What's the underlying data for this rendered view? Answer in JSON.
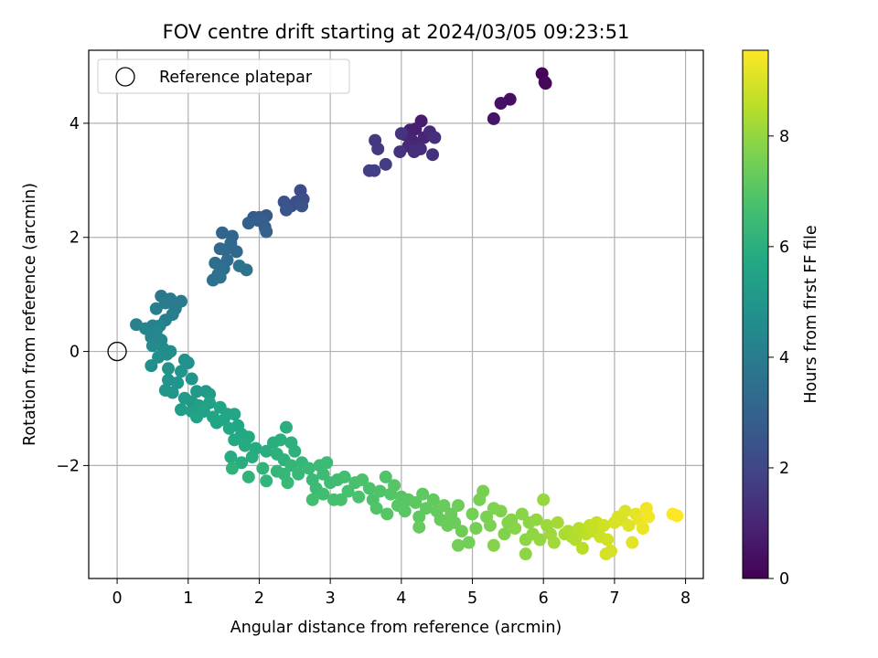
{
  "chart_data": {
    "type": "scatter",
    "title": "FOV centre drift starting at 2024/03/05 09:23:51",
    "xlabel": "Angular distance from reference (arcmin)",
    "ylabel": "Rotation from reference (arcmin)",
    "xlim": [
      -0.4,
      8.25
    ],
    "ylim": [
      -3.98,
      5.28
    ],
    "xticks": [
      "0",
      "1",
      "2",
      "3",
      "4",
      "5",
      "6",
      "7",
      "8"
    ],
    "yticks": [
      "−2",
      "0",
      "2",
      "4"
    ],
    "ytick_values": [
      -2,
      0,
      2,
      4
    ],
    "xtick_values": [
      0,
      1,
      2,
      3,
      4,
      5,
      6,
      7,
      8
    ],
    "grid": true,
    "legend": {
      "placement": "top-left",
      "entries": [
        "Reference platepar"
      ]
    },
    "reference_point": {
      "x": 0,
      "y": 0,
      "label": "Reference platepar"
    },
    "colorbar": {
      "label": "Hours from first FF file",
      "colormap": "viridis",
      "range": [
        0,
        9.55
      ],
      "ticks": [
        "0",
        "2",
        "4",
        "6",
        "8"
      ],
      "tick_values": [
        0,
        2,
        4,
        6,
        8
      ]
    },
    "series": [
      {
        "points": [
          [
            5.98,
            4.87,
            0.1
          ],
          [
            6.02,
            4.72,
            0.15
          ],
          [
            6.03,
            4.7,
            0.2
          ],
          [
            5.53,
            4.42,
            0.35
          ],
          [
            5.4,
            4.35,
            0.45
          ],
          [
            5.3,
            4.08,
            0.55
          ],
          [
            4.28,
            4.04,
            0.75
          ],
          [
            4.12,
            3.88,
            0.8
          ],
          [
            4.2,
            3.9,
            0.85
          ],
          [
            4.15,
            3.7,
            0.9
          ],
          [
            4.05,
            3.8,
            0.95
          ],
          [
            4.32,
            3.75,
            1.0
          ],
          [
            4.22,
            3.6,
            1.05
          ],
          [
            4.1,
            3.6,
            1.1
          ],
          [
            4.4,
            3.85,
            1.15
          ],
          [
            4.27,
            3.55,
            1.2
          ],
          [
            4.18,
            3.5,
            1.25
          ],
          [
            4.47,
            3.75,
            1.3
          ],
          [
            4.44,
            3.45,
            1.35
          ],
          [
            3.98,
            3.5,
            1.4
          ],
          [
            4.0,
            3.82,
            1.45
          ],
          [
            3.63,
            3.7,
            1.55
          ],
          [
            3.67,
            3.55,
            1.6
          ],
          [
            3.78,
            3.28,
            1.7
          ],
          [
            3.55,
            3.17,
            1.75
          ],
          [
            3.62,
            3.17,
            1.8
          ],
          [
            2.58,
            2.82,
            2.2
          ],
          [
            2.62,
            2.67,
            2.25
          ],
          [
            2.52,
            2.62,
            2.3
          ],
          [
            2.45,
            2.55,
            2.35
          ],
          [
            2.35,
            2.62,
            2.4
          ],
          [
            2.6,
            2.55,
            2.45
          ],
          [
            2.38,
            2.48,
            2.5
          ],
          [
            2.1,
            2.38,
            2.6
          ],
          [
            2.0,
            2.35,
            2.65
          ],
          [
            1.92,
            2.35,
            2.7
          ],
          [
            2.08,
            2.18,
            2.75
          ],
          [
            1.98,
            2.3,
            2.8
          ],
          [
            2.05,
            2.3,
            2.85
          ],
          [
            1.85,
            2.25,
            2.9
          ],
          [
            2.1,
            2.1,
            2.95
          ],
          [
            1.48,
            2.08,
            3.05
          ],
          [
            1.62,
            2.02,
            3.1
          ],
          [
            1.45,
            1.8,
            3.15
          ],
          [
            1.6,
            1.9,
            3.2
          ],
          [
            1.68,
            1.75,
            3.25
          ],
          [
            1.52,
            1.78,
            3.3
          ],
          [
            1.55,
            1.6,
            3.35
          ],
          [
            1.38,
            1.55,
            3.4
          ],
          [
            1.5,
            1.45,
            3.45
          ],
          [
            1.42,
            1.35,
            3.5
          ],
          [
            1.35,
            1.25,
            3.55
          ],
          [
            1.45,
            1.3,
            3.6
          ],
          [
            1.82,
            1.43,
            3.62
          ],
          [
            1.72,
            1.5,
            3.65
          ],
          [
            0.62,
            0.97,
            3.8
          ],
          [
            0.75,
            0.92,
            3.85
          ],
          [
            0.9,
            0.88,
            3.9
          ],
          [
            0.68,
            0.85,
            3.92
          ],
          [
            0.82,
            0.75,
            3.95
          ],
          [
            0.78,
            0.65,
            4.0
          ],
          [
            0.55,
            0.75,
            4.05
          ],
          [
            0.68,
            0.55,
            4.1
          ],
          [
            0.5,
            0.45,
            4.15
          ],
          [
            0.6,
            0.45,
            4.2
          ],
          [
            0.27,
            0.47,
            4.25
          ],
          [
            0.4,
            0.4,
            4.3
          ],
          [
            0.48,
            0.25,
            4.35
          ],
          [
            0.55,
            0.35,
            4.4
          ],
          [
            0.62,
            0.2,
            4.45
          ],
          [
            0.5,
            0.1,
            4.5
          ],
          [
            0.65,
            0.05,
            4.55
          ],
          [
            0.7,
            -0.05,
            4.6
          ],
          [
            0.75,
            0.0,
            4.65
          ],
          [
            0.58,
            -0.1,
            4.7
          ],
          [
            0.48,
            -0.25,
            4.75
          ],
          [
            0.95,
            -0.15,
            4.8
          ],
          [
            1.0,
            -0.2,
            4.82
          ],
          [
            0.72,
            -0.3,
            4.85
          ],
          [
            0.9,
            -0.35,
            4.88
          ],
          [
            0.72,
            -0.5,
            4.9
          ],
          [
            0.85,
            -0.55,
            4.92
          ],
          [
            1.05,
            -0.48,
            4.95
          ],
          [
            0.68,
            -0.68,
            4.97
          ],
          [
            0.78,
            -0.72,
            5.0
          ],
          [
            1.12,
            -0.7,
            5.05
          ],
          [
            1.25,
            -0.7,
            5.1
          ],
          [
            0.95,
            -0.82,
            5.15
          ],
          [
            1.05,
            -0.88,
            5.2
          ],
          [
            1.3,
            -0.75,
            5.25
          ],
          [
            0.9,
            -1.02,
            5.3
          ],
          [
            1.05,
            -1.05,
            5.35
          ],
          [
            1.15,
            -0.95,
            5.4
          ],
          [
            1.3,
            -0.9,
            5.45
          ],
          [
            1.22,
            -1.05,
            5.5
          ],
          [
            1.12,
            -1.15,
            5.52
          ],
          [
            1.45,
            -0.98,
            5.55
          ],
          [
            1.35,
            -1.15,
            5.58
          ],
          [
            1.4,
            -1.25,
            5.6
          ],
          [
            1.55,
            -1.1,
            5.62
          ],
          [
            1.65,
            -1.1,
            5.65
          ],
          [
            1.5,
            -1.2,
            5.68
          ],
          [
            1.7,
            -1.3,
            5.7
          ],
          [
            1.58,
            -1.35,
            5.72
          ],
          [
            1.75,
            -1.45,
            5.75
          ],
          [
            1.65,
            -1.55,
            5.78
          ],
          [
            1.85,
            -1.5,
            5.8
          ],
          [
            1.8,
            -1.65,
            5.82
          ],
          [
            1.95,
            -1.7,
            5.85
          ],
          [
            1.6,
            -1.85,
            5.88
          ],
          [
            1.9,
            -1.85,
            5.9
          ],
          [
            1.75,
            -1.95,
            5.92
          ],
          [
            2.1,
            -1.75,
            5.95
          ],
          [
            2.2,
            -1.6,
            5.98
          ],
          [
            2.3,
            -1.55,
            6.0
          ],
          [
            2.38,
            -1.33,
            6.02
          ],
          [
            2.45,
            -1.6,
            6.05
          ],
          [
            2.25,
            -1.8,
            6.08
          ],
          [
            2.35,
            -1.9,
            6.1
          ],
          [
            2.5,
            -1.75,
            6.12
          ],
          [
            1.62,
            -2.05,
            6.15
          ],
          [
            1.85,
            -2.2,
            6.18
          ],
          [
            2.05,
            -2.05,
            6.2
          ],
          [
            2.1,
            -2.27,
            6.22
          ],
          [
            2.25,
            -2.1,
            6.25
          ],
          [
            2.45,
            -2.0,
            6.28
          ],
          [
            2.35,
            -2.15,
            6.3
          ],
          [
            2.6,
            -1.95,
            6.32
          ],
          [
            2.55,
            -2.15,
            6.35
          ],
          [
            2.4,
            -2.3,
            6.38
          ],
          [
            2.7,
            -2.05,
            6.4
          ],
          [
            2.75,
            -2.25,
            6.42
          ],
          [
            2.85,
            -2.0,
            6.45
          ],
          [
            2.9,
            -2.15,
            6.48
          ],
          [
            2.95,
            -1.95,
            6.5
          ],
          [
            2.8,
            -2.4,
            6.52
          ],
          [
            3.0,
            -2.3,
            6.55
          ],
          [
            3.1,
            -2.25,
            6.58
          ],
          [
            2.9,
            -2.5,
            6.6
          ],
          [
            3.2,
            -2.2,
            6.62
          ],
          [
            2.75,
            -2.6,
            6.65
          ],
          [
            3.05,
            -2.6,
            6.68
          ],
          [
            3.25,
            -2.45,
            6.7
          ],
          [
            3.15,
            -2.6,
            6.72
          ],
          [
            3.35,
            -2.3,
            6.75
          ],
          [
            3.4,
            -2.55,
            6.78
          ],
          [
            3.45,
            -2.25,
            6.8
          ],
          [
            3.55,
            -2.4,
            6.82
          ],
          [
            3.6,
            -2.6,
            6.85
          ],
          [
            3.7,
            -2.45,
            6.88
          ],
          [
            3.65,
            -2.75,
            6.9
          ],
          [
            3.78,
            -2.2,
            6.92
          ],
          [
            3.85,
            -2.5,
            6.95
          ],
          [
            3.9,
            -2.35,
            6.98
          ],
          [
            3.8,
            -2.85,
            7.0
          ],
          [
            4.0,
            -2.55,
            7.02
          ],
          [
            3.95,
            -2.7,
            7.05
          ],
          [
            4.1,
            -2.6,
            7.08
          ],
          [
            4.05,
            -2.8,
            7.1
          ],
          [
            4.2,
            -2.65,
            7.12
          ],
          [
            4.25,
            -2.9,
            7.15
          ],
          [
            4.3,
            -2.5,
            7.18
          ],
          [
            4.35,
            -2.75,
            7.2
          ],
          [
            4.45,
            -2.6,
            7.22
          ],
          [
            4.5,
            -2.8,
            7.25
          ],
          [
            4.25,
            -3.08,
            7.28
          ],
          [
            4.55,
            -2.95,
            7.3
          ],
          [
            4.6,
            -2.7,
            7.32
          ],
          [
            4.7,
            -2.85,
            7.35
          ],
          [
            4.75,
            -3.0,
            7.38
          ],
          [
            4.65,
            -3.05,
            7.4
          ],
          [
            4.8,
            -2.7,
            7.42
          ],
          [
            4.85,
            -3.15,
            7.45
          ],
          [
            4.95,
            -3.35,
            7.48
          ],
          [
            4.8,
            -3.4,
            7.5
          ],
          [
            5.0,
            -2.85,
            7.52
          ],
          [
            5.05,
            -3.1,
            7.55
          ],
          [
            5.1,
            -2.6,
            7.58
          ],
          [
            5.15,
            -2.45,
            7.6
          ],
          [
            5.2,
            -2.9,
            7.62
          ],
          [
            5.25,
            -3.05,
            7.65
          ],
          [
            5.3,
            -2.75,
            7.68
          ],
          [
            5.4,
            -2.8,
            7.7
          ],
          [
            5.45,
            -3.2,
            7.72
          ],
          [
            5.5,
            -3.0,
            7.75
          ],
          [
            5.3,
            -3.4,
            7.78
          ],
          [
            5.55,
            -2.95,
            7.8
          ],
          [
            5.6,
            -3.1,
            7.82
          ],
          [
            5.7,
            -2.85,
            7.85
          ],
          [
            5.75,
            -3.3,
            7.88
          ],
          [
            5.8,
            -3.0,
            7.9
          ],
          [
            5.75,
            -3.55,
            7.92
          ],
          [
            5.85,
            -3.2,
            7.95
          ],
          [
            5.9,
            -2.95,
            7.98
          ],
          [
            5.95,
            -3.3,
            8.0
          ],
          [
            6.0,
            -2.6,
            8.05
          ],
          [
            6.05,
            -3.05,
            8.1
          ],
          [
            6.1,
            -3.2,
            8.15
          ],
          [
            6.15,
            -3.35,
            8.2
          ],
          [
            6.2,
            -3.0,
            8.25
          ],
          [
            6.3,
            -3.2,
            8.3
          ],
          [
            6.35,
            -3.15,
            8.35
          ],
          [
            6.4,
            -3.25,
            8.4
          ],
          [
            6.45,
            -3.3,
            8.45
          ],
          [
            6.5,
            -3.1,
            8.5
          ],
          [
            6.55,
            -3.45,
            8.55
          ],
          [
            6.6,
            -3.2,
            8.6
          ],
          [
            6.65,
            -3.05,
            8.65
          ],
          [
            6.7,
            -3.15,
            8.7
          ],
          [
            6.75,
            -3.0,
            8.75
          ],
          [
            6.8,
            -3.25,
            8.8
          ],
          [
            6.85,
            -3.05,
            8.85
          ],
          [
            6.9,
            -3.3,
            8.9
          ],
          [
            6.88,
            -3.55,
            8.92
          ],
          [
            6.95,
            -3.5,
            8.94
          ],
          [
            7.0,
            -3.0,
            8.96
          ],
          [
            7.05,
            -2.9,
            8.98
          ],
          [
            7.1,
            -2.95,
            9.0
          ],
          [
            7.15,
            -2.8,
            9.05
          ],
          [
            7.2,
            -3.05,
            9.1
          ],
          [
            7.25,
            -3.35,
            9.15
          ],
          [
            7.3,
            -2.85,
            9.2
          ],
          [
            7.35,
            -2.95,
            9.25
          ],
          [
            7.4,
            -3.1,
            9.3
          ],
          [
            7.45,
            -2.75,
            9.35
          ],
          [
            7.48,
            -2.9,
            9.4
          ],
          [
            7.82,
            -2.85,
            9.5
          ],
          [
            7.88,
            -2.88,
            9.55
          ]
        ]
      }
    ]
  }
}
